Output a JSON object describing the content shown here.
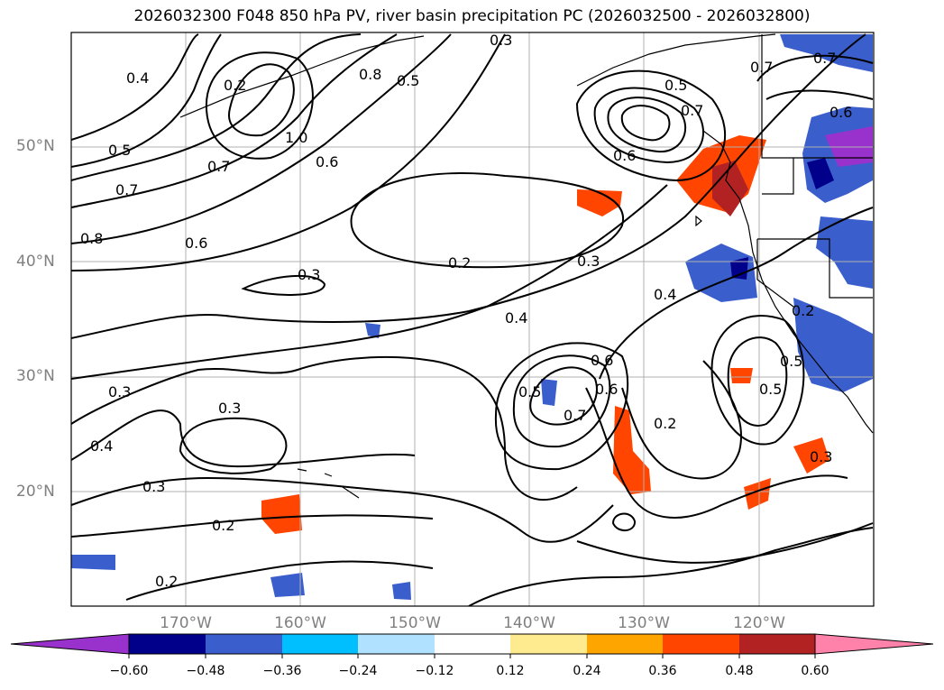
{
  "title": "2026032300 F048 850 hPa PV, river basin precipitation PC (2026032500 - 2026032800)",
  "lat_labels": [
    "50°N",
    "40°N",
    "30°N",
    "20°N"
  ],
  "lon_labels": [
    "170°W",
    "160°W",
    "150°W",
    "140°W",
    "130°W",
    "120°W"
  ],
  "contour_labels": [
    "0.4",
    "0.2",
    "0.8",
    "1.0",
    "0.5",
    "0.5",
    "0.7",
    "0.6",
    "0.7",
    "0.8",
    "0.6",
    "0.2",
    "0.3",
    "0.3",
    "0.4",
    "0.5",
    "0.7",
    "0.6",
    "0.3",
    "0.3",
    "0.4",
    "0.3",
    "0.2",
    "0.2",
    "0.5",
    "0.7",
    "0.6",
    "0.2",
    "0.5",
    "0.4",
    "0.2",
    "0.3",
    "0.3",
    "0.7",
    "0.7",
    "0.6",
    "0.5",
    "0.6"
  ],
  "colorbar": {
    "ticks": [
      "−0.60",
      "−0.48",
      "−0.36",
      "−0.24",
      "−0.12",
      "0.12",
      "0.24",
      "0.36",
      "0.48",
      "0.60"
    ],
    "colors": [
      "#9932cc",
      "#00008b",
      "#3a5fcd",
      "#00bfff",
      "#b0e2ff",
      "#ffffff",
      "#ffeb8f",
      "#ffa500",
      "#ff4500",
      "#b22222",
      "#ff82ab"
    ]
  }
}
